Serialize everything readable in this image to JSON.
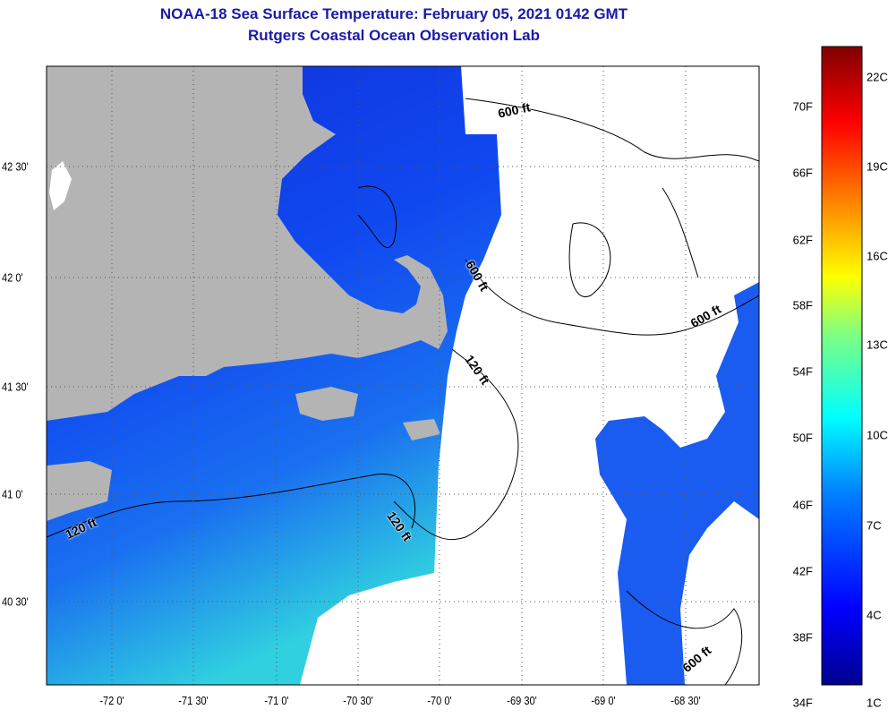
{
  "title": {
    "line1": "NOAA-18 Sea Surface Temperature:  February 05, 2021 0142 GMT",
    "line2": "Rutgers Coastal Ocean Observation Lab"
  },
  "map": {
    "longitude_labels": [
      "-72 0'",
      "-71 30'",
      "-71 0'",
      "-70 30'",
      "-70 0'",
      "-69 30'",
      "-69 0'",
      "-68 30'"
    ],
    "latitude_labels": [
      "42 30'",
      "42 0'",
      "41 30'",
      "41 0'",
      "40 30'"
    ],
    "contour_labels": [
      "600 ft",
      "600 ft",
      "600 ft",
      "600 ft",
      "120 ft",
      "120 ft",
      "120 ft"
    ],
    "colors": {
      "land": "#b4b4b4",
      "cloud_nodata": "#ffffff",
      "contour": "#000000"
    }
  },
  "colorbar": {
    "fahrenheit_labels": [
      "70F",
      "66F",
      "62F",
      "58F",
      "54F",
      "50F",
      "46F",
      "42F",
      "38F",
      "34F"
    ],
    "celsius_labels": [
      "22C",
      "19C",
      "16C",
      "13C",
      "10C",
      "7C",
      "4C",
      "1C"
    ],
    "range_f": [
      34,
      74
    ],
    "colors": [
      "#00008f",
      "#0000ff",
      "#0080ff",
      "#00ffff",
      "#80ff80",
      "#ffff00",
      "#ff8000",
      "#ff0000",
      "#800000"
    ]
  }
}
